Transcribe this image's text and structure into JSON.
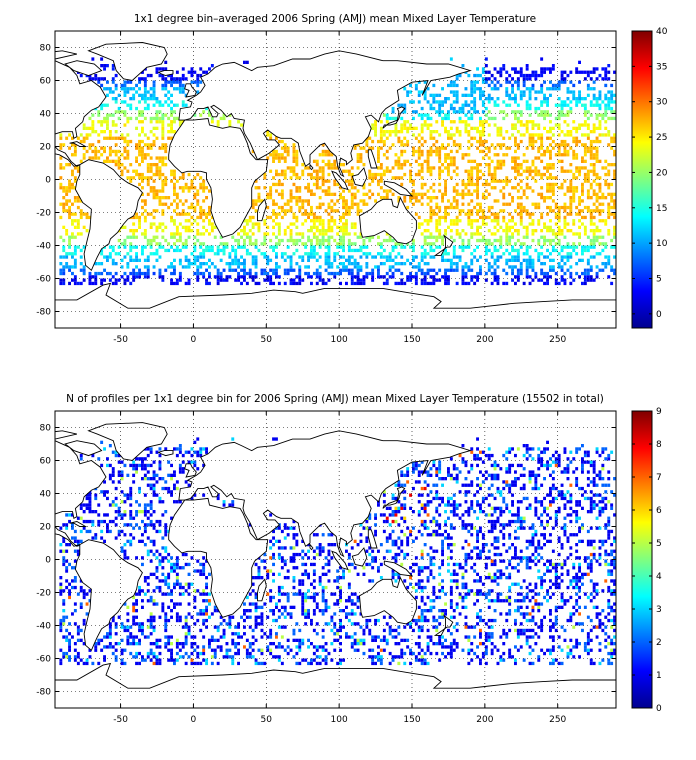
{
  "chart_data": [
    {
      "type": "heatmap",
      "title": "1x1 degree bin–averaged 2006 Spring (AMJ) mean Mixed Layer Temperature",
      "x_ticks": [
        "-50",
        "0",
        "50",
        "100",
        "150",
        "200",
        "250"
      ],
      "x_tick_values": [
        -50,
        0,
        50,
        100,
        150,
        200,
        250
      ],
      "y_ticks": [
        "80",
        "60",
        "40",
        "20",
        "0",
        "-20",
        "-40",
        "-60",
        "-80"
      ],
      "y_tick_values": [
        80,
        60,
        40,
        20,
        0,
        -20,
        -40,
        -60,
        -80
      ],
      "xlim": [
        -95,
        290
      ],
      "ylim": [
        -90,
        90
      ],
      "grid": true,
      "colorbar": {
        "ticks": [
          "40",
          "35",
          "30",
          "25",
          "20",
          "15",
          "10",
          "5",
          "0"
        ],
        "tick_values": [
          40,
          35,
          30,
          25,
          20,
          15,
          10,
          5,
          0
        ],
        "range": [
          -2,
          40
        ],
        "colormap": "jet"
      }
    },
    {
      "type": "heatmap",
      "title": "N of profiles per 1x1 degree bin for 2006 Spring (AMJ) mean Mixed Layer Temperature  (15502 in total)",
      "x_ticks": [
        "-50",
        "0",
        "50",
        "100",
        "150",
        "200",
        "250"
      ],
      "x_tick_values": [
        -50,
        0,
        50,
        100,
        150,
        200,
        250
      ],
      "y_ticks": [
        "80",
        "60",
        "40",
        "20",
        "0",
        "-20",
        "-40",
        "-60",
        "-80"
      ],
      "y_tick_values": [
        80,
        60,
        40,
        20,
        0,
        -20,
        -40,
        -60,
        -80
      ],
      "xlim": [
        -95,
        290
      ],
      "ylim": [
        -90,
        90
      ],
      "grid": true,
      "colorbar": {
        "ticks": [
          "9",
          "8",
          "7",
          "6",
          "5",
          "4",
          "3",
          "2",
          "1",
          "0"
        ],
        "tick_values": [
          9,
          8,
          7,
          6,
          5,
          4,
          3,
          2,
          1,
          0
        ],
        "range": [
          0,
          9
        ],
        "colormap": "jet"
      }
    }
  ]
}
